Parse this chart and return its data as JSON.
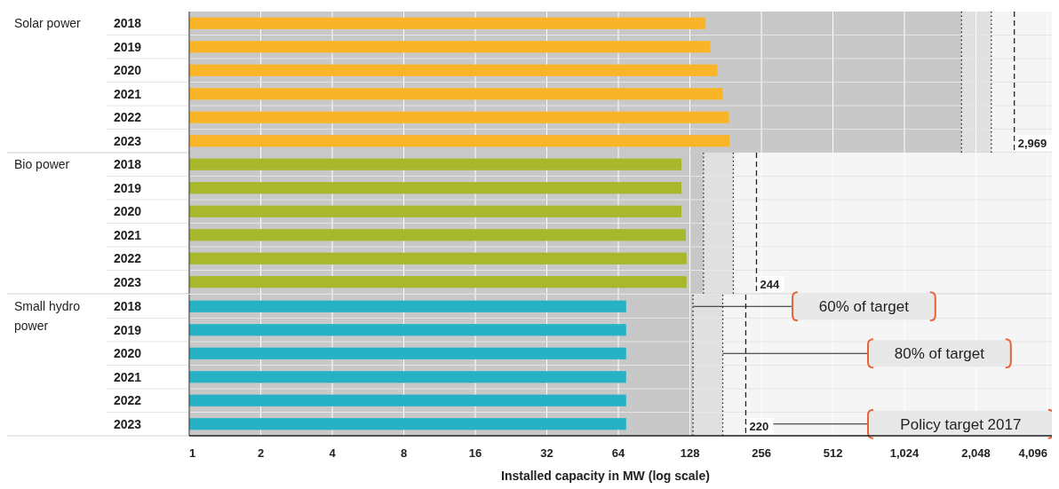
{
  "chart_data": [
    {
      "type": "bar",
      "orientation": "horizontal",
      "ylabel": "Solar power",
      "categories": [
        "2018",
        "2019",
        "2020",
        "2021",
        "2022",
        "2023"
      ],
      "values": [
        149,
        156,
        167,
        176,
        187,
        188
      ],
      "color": "#f9b428",
      "log": "x",
      "xlim": [
        1,
        4500
      ],
      "xticks": [
        1,
        2,
        4,
        8,
        16,
        32,
        64,
        128,
        256,
        512,
        1024,
        2048,
        4096
      ],
      "tick_labels": "y",
      "grid": true,
      "bands": [
        {
          "axis": "x",
          "from": 1,
          "to": 1781,
          "color": "#c8c8c8"
        },
        {
          "axis": "x",
          "from": 1781,
          "to": 2375,
          "color": "#e0e0e0"
        }
      ],
      "ref_lines": [
        {
          "axis": "x",
          "value": 1781,
          "line_style": "dotted"
        },
        {
          "axis": "x",
          "value": 2375,
          "line_style": "dotted"
        },
        {
          "axis": "x",
          "value": 2969,
          "label": "2,969",
          "line_style": "dashed"
        }
      ]
    },
    {
      "type": "bar",
      "orientation": "horizontal",
      "ylabel": "Bio power",
      "categories": [
        "2018",
        "2019",
        "2020",
        "2021",
        "2022",
        "2023"
      ],
      "values": [
        118,
        118,
        118,
        123,
        124,
        124
      ],
      "color": "#a8b82c",
      "log": "x",
      "xlim": [
        1,
        4500
      ],
      "xticks": [
        1,
        2,
        4,
        8,
        16,
        32,
        64,
        128,
        256,
        512,
        1024,
        2048,
        4096
      ],
      "tick_labels": "y",
      "grid": true,
      "bands": [
        {
          "axis": "x",
          "from": 1,
          "to": 146,
          "color": "#c8c8c8"
        },
        {
          "axis": "x",
          "from": 146,
          "to": 195,
          "color": "#e0e0e0"
        }
      ],
      "ref_lines": [
        {
          "axis": "x",
          "value": 146,
          "line_style": "dotted"
        },
        {
          "axis": "x",
          "value": 195,
          "line_style": "dotted"
        },
        {
          "axis": "x",
          "value": 244,
          "label": "244",
          "line_style": "dashed"
        }
      ]
    },
    {
      "type": "bar",
      "orientation": "horizontal",
      "ylabel": "Small hydro power",
      "xlabel": "Installed capacity in MW (log scale)",
      "categories": [
        "2018",
        "2019",
        "2020",
        "2021",
        "2022",
        "2023"
      ],
      "values": [
        69,
        69,
        69,
        69,
        69,
        69
      ],
      "color": "#26b2c4",
      "log": "x",
      "xlim": [
        1,
        4500
      ],
      "xticks": [
        1,
        2,
        4,
        8,
        16,
        32,
        64,
        128,
        256,
        512,
        {
          "value": 1024,
          "label": "1,024"
        },
        {
          "value": 2048,
          "label": "2,048"
        },
        {
          "value": 4096,
          "label": "4,096"
        }
      ],
      "grid": true,
      "bands": [
        {
          "axis": "x",
          "from": 1,
          "to": 132,
          "color": "#c8c8c8"
        },
        {
          "axis": "x",
          "from": 132,
          "to": 176,
          "color": "#e0e0e0"
        }
      ],
      "ref_lines": [
        {
          "axis": "x",
          "value": 132,
          "line_style": "dotted"
        },
        {
          "axis": "x",
          "value": 176,
          "line_style": "dotted"
        },
        {
          "axis": "x",
          "value": 220,
          "label": "220",
          "line_style": "dashed"
        }
      ],
      "annotations": [
        "60% of target",
        "80% of target",
        "Policy target 2017"
      ]
    }
  ]
}
